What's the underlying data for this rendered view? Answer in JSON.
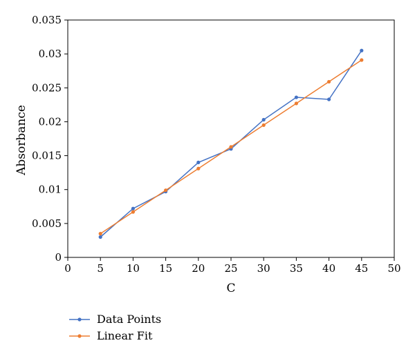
{
  "chart_data": {
    "type": "line",
    "title": "",
    "xlabel": "C",
    "ylabel": "Absorbance",
    "xlim": [
      0,
      50
    ],
    "ylim": [
      0,
      0.035
    ],
    "x_ticks": [
      "0",
      "5",
      "10",
      "15",
      "20",
      "25",
      "30",
      "35",
      "40",
      "45",
      "50"
    ],
    "y_ticks": [
      "0",
      "0.005",
      "0.01",
      "0.015",
      "0.02",
      "0.025",
      "0.03",
      "0.035"
    ],
    "grid": false,
    "legend_position": "bottom-left",
    "series": [
      {
        "name": "Data Points",
        "color": "#4472c4",
        "x": [
          5,
          10,
          15,
          20,
          25,
          30,
          35,
          40,
          45
        ],
        "y": [
          0.003,
          0.0072,
          0.0097,
          0.014,
          0.016,
          0.0203,
          0.0236,
          0.0233,
          0.0305
        ]
      },
      {
        "name": "Linear Fit",
        "color": "#ed7d31",
        "x": [
          5,
          10,
          15,
          20,
          25,
          30,
          35,
          40,
          45
        ],
        "y": [
          0.0035,
          0.0067,
          0.0099,
          0.0131,
          0.0163,
          0.0195,
          0.0227,
          0.0259,
          0.0291
        ]
      }
    ]
  }
}
